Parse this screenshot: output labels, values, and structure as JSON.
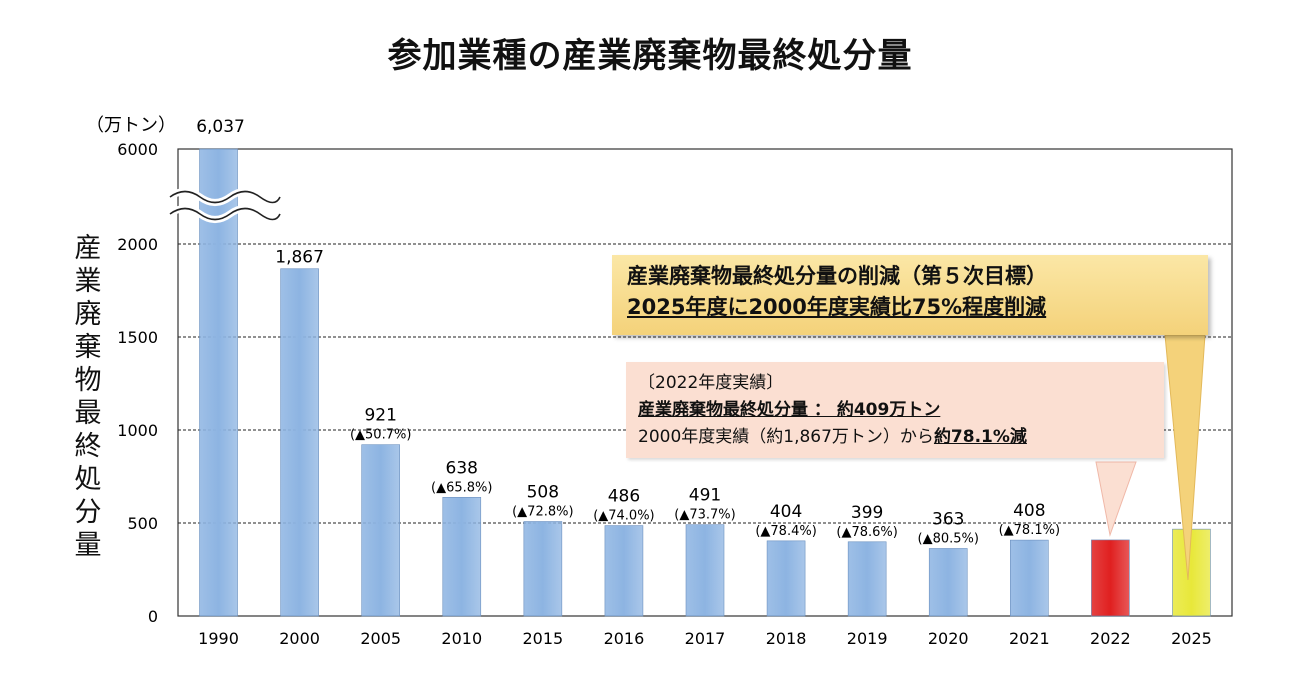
{
  "title": "参加業種の産業廃棄物最終処分量",
  "chart_data": {
    "type": "bar",
    "unit_label": "（万トン）",
    "ylabel": "産業廃棄物最終処分量",
    "y_ticks": [
      "0",
      "500",
      "1000",
      "1500",
      "2000",
      "6000"
    ],
    "ylim": [
      0,
      2500
    ],
    "axis_break": {
      "from": 2000,
      "to": 6000
    },
    "categories": [
      "1990",
      "2000",
      "2005",
      "2010",
      "2015",
      "2016",
      "2017",
      "2018",
      "2019",
      "2020",
      "2021",
      "2022",
      "2025"
    ],
    "values": [
      6037,
      1867,
      921,
      638,
      508,
      486,
      491,
      404,
      399,
      363,
      408,
      409,
      467
    ],
    "value_labels": [
      "6,037",
      "1,867",
      "921",
      "638",
      "508",
      "486",
      "491",
      "404",
      "399",
      "363",
      "408",
      "",
      ""
    ],
    "reduction_labels": [
      "",
      "",
      "(▲50.7%)",
      "(▲65.8%)",
      "(▲72.8%)",
      "(▲74.0%)",
      "(▲73.7%)",
      "(▲78.4%)",
      "(▲78.6%)",
      "(▲80.5%)",
      "(▲78.1%)",
      "",
      ""
    ],
    "bar_colors": [
      "#8db4e2",
      "#8db4e2",
      "#8db4e2",
      "#8db4e2",
      "#8db4e2",
      "#8db4e2",
      "#8db4e2",
      "#8db4e2",
      "#8db4e2",
      "#8db4e2",
      "#8db4e2",
      "#e02020",
      "#e8e83a"
    ],
    "grid": true
  },
  "callout_target": {
    "line1": "産業廃棄物最終処分量の削減（第５次目標）",
    "line2": "2025年度に2000年度実績比75%程度削減"
  },
  "callout_actual": {
    "line1": "〔2022年度実績〕",
    "line2": "産業廃棄物最終処分量 ： 約409万トン",
    "line3_prefix": "2000年度実績（約1,867万トン）から",
    "line3_emphasis": "約78.1%減"
  },
  "colors": {
    "bar": "#8db4e2",
    "bar_2022": "#e02020",
    "bar_2025": "#e8e83a",
    "callout_target_bg": "#f4d27a",
    "callout_actual_bg": "#fbdfd2"
  }
}
